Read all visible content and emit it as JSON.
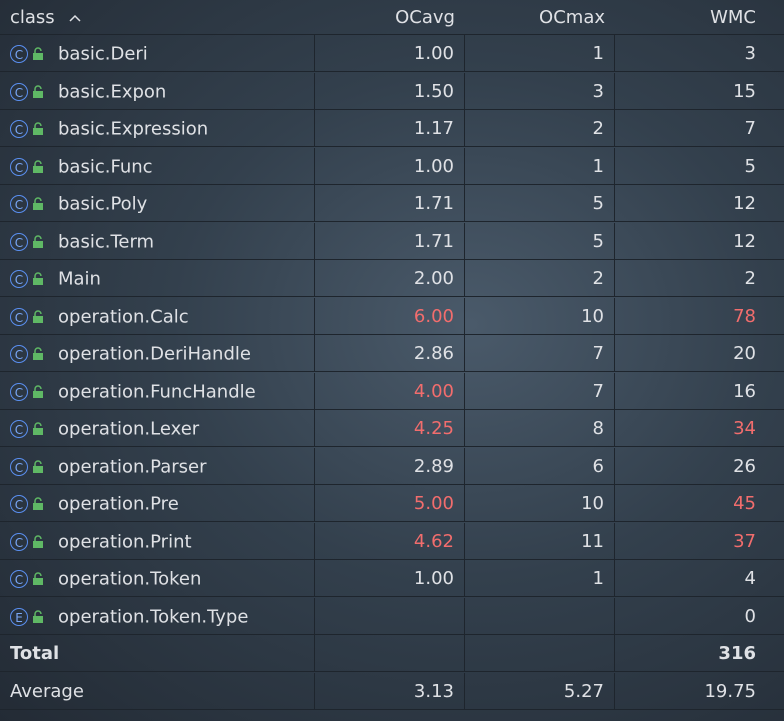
{
  "table": {
    "columns": [
      "class",
      "OCavg",
      "OCmax",
      "WMC"
    ],
    "rows": [
      {
        "kind": "C",
        "name": "basic.Deri",
        "ocavg": "1.00",
        "ocmax": "1",
        "wmc": "3",
        "red": []
      },
      {
        "kind": "C",
        "name": "basic.Expon",
        "ocavg": "1.50",
        "ocmax": "3",
        "wmc": "15",
        "red": []
      },
      {
        "kind": "C",
        "name": "basic.Expression",
        "ocavg": "1.17",
        "ocmax": "2",
        "wmc": "7",
        "red": []
      },
      {
        "kind": "C",
        "name": "basic.Func",
        "ocavg": "1.00",
        "ocmax": "1",
        "wmc": "5",
        "red": []
      },
      {
        "kind": "C",
        "name": "basic.Poly",
        "ocavg": "1.71",
        "ocmax": "5",
        "wmc": "12",
        "red": []
      },
      {
        "kind": "C",
        "name": "basic.Term",
        "ocavg": "1.71",
        "ocmax": "5",
        "wmc": "12",
        "red": []
      },
      {
        "kind": "C",
        "name": "Main",
        "ocavg": "2.00",
        "ocmax": "2",
        "wmc": "2",
        "red": []
      },
      {
        "kind": "C",
        "name": "operation.Calc",
        "ocavg": "6.00",
        "ocmax": "10",
        "wmc": "78",
        "red": [
          "ocavg",
          "wmc"
        ]
      },
      {
        "kind": "C",
        "name": "operation.DeriHandle",
        "ocavg": "2.86",
        "ocmax": "7",
        "wmc": "20",
        "red": []
      },
      {
        "kind": "C",
        "name": "operation.FuncHandle",
        "ocavg": "4.00",
        "ocmax": "7",
        "wmc": "16",
        "red": [
          "ocavg"
        ]
      },
      {
        "kind": "C",
        "name": "operation.Lexer",
        "ocavg": "4.25",
        "ocmax": "8",
        "wmc": "34",
        "red": [
          "ocavg",
          "wmc"
        ]
      },
      {
        "kind": "C",
        "name": "operation.Parser",
        "ocavg": "2.89",
        "ocmax": "6",
        "wmc": "26",
        "red": []
      },
      {
        "kind": "C",
        "name": "operation.Pre",
        "ocavg": "5.00",
        "ocmax": "10",
        "wmc": "45",
        "red": [
          "ocavg",
          "wmc"
        ]
      },
      {
        "kind": "C",
        "name": "operation.Print",
        "ocavg": "4.62",
        "ocmax": "11",
        "wmc": "37",
        "red": [
          "ocavg",
          "wmc"
        ]
      },
      {
        "kind": "C",
        "name": "operation.Token",
        "ocavg": "1.00",
        "ocmax": "1",
        "wmc": "4",
        "red": []
      },
      {
        "kind": "E",
        "name": "operation.Token.Type",
        "ocavg": null,
        "ocmax": null,
        "wmc": "0",
        "red": []
      }
    ],
    "total": {
      "label": "Total",
      "wmc": "316"
    },
    "average": {
      "label": "Average",
      "ocavg": "3.13",
      "ocmax": "5.27",
      "wmc": "19.75"
    }
  }
}
